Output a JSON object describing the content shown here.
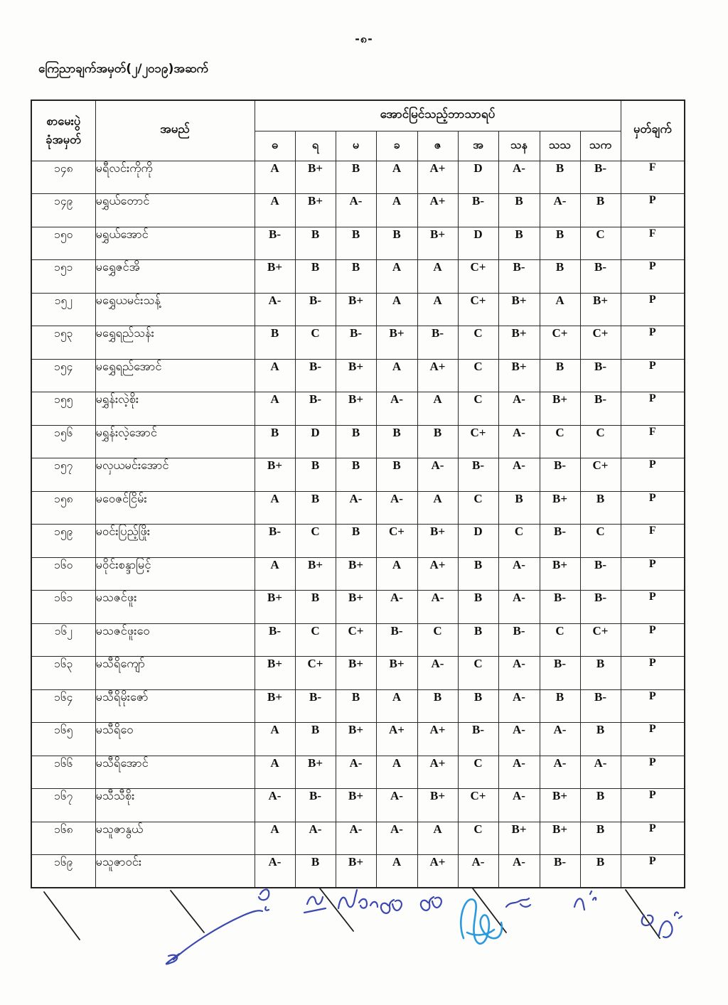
{
  "page": {
    "number_label": "-၈-",
    "header_line": "ကြေညာချက်အမှတ်(၂/၂၀၁၉)အဆက်"
  },
  "table": {
    "col_roll_header_line1": "စာမေးပွဲ",
    "col_roll_header_line2": "ခုံအမှတ်",
    "col_name_header": "အမည်",
    "subjects_group_header": "အောင်မြင်သည့်ဘာသာရပ်",
    "subject_headers": [
      "ဓ",
      "ရ",
      "မ",
      "ခ",
      "ဇ",
      "အ",
      "သန",
      "သသ",
      "သက"
    ],
    "col_remark_header": "မှတ်ချက်",
    "rows": [
      {
        "roll": "၁၄၈",
        "name": "မရီလင်းကိုကို",
        "grades": [
          "A",
          "B+",
          "B",
          "A",
          "A+",
          "D",
          "A-",
          "B",
          "B-"
        ],
        "remark": "F"
      },
      {
        "roll": "၁၄၉",
        "name": "မရွှယ်တောင်",
        "grades": [
          "A",
          "B+",
          "A-",
          "A",
          "A+",
          "B-",
          "B",
          "A-",
          "B"
        ],
        "remark": "P"
      },
      {
        "roll": "၁၅၀",
        "name": "မရွှယ်အောင်",
        "grades": [
          "B-",
          "B",
          "B",
          "B",
          "B+",
          "D",
          "B",
          "B",
          "C"
        ],
        "remark": "F"
      },
      {
        "roll": "၁၅၁",
        "name": "မရွှေဇင်အိ",
        "grades": [
          "B+",
          "B",
          "B",
          "A",
          "A",
          "C+",
          "B-",
          "B",
          "B-"
        ],
        "remark": "P"
      },
      {
        "roll": "၁၅၂",
        "name": "မရွှေယမင်းသန့်",
        "grades": [
          "A-",
          "B-",
          "B+",
          "A",
          "A",
          "C+",
          "B+",
          "A",
          "B+"
        ],
        "remark": "P"
      },
      {
        "roll": "၁၅၃",
        "name": "မရွှေရည်သန်း",
        "grades": [
          "B",
          "C",
          "B-",
          "B+",
          "B-",
          "C",
          "B+",
          "C+",
          "C+"
        ],
        "remark": "P"
      },
      {
        "roll": "၁၅၄",
        "name": "မရွှေရည်အောင်",
        "grades": [
          "A",
          "B-",
          "B+",
          "A",
          "A+",
          "C",
          "B+",
          "B",
          "B-"
        ],
        "remark": "P"
      },
      {
        "roll": "၁၅၅",
        "name": "မရွှန်းလဲ့စိုး",
        "grades": [
          "A",
          "B-",
          "B+",
          "A-",
          "A",
          "C",
          "A-",
          "B+",
          "B-"
        ],
        "remark": "P"
      },
      {
        "roll": "၁၅၆",
        "name": "မရွှန်းလဲ့အောင်",
        "grades": [
          "B",
          "D",
          "B",
          "B",
          "B",
          "C+",
          "A-",
          "C",
          "C"
        ],
        "remark": "F"
      },
      {
        "roll": "၁၅၇",
        "name": "မလှယမင်းအောင်",
        "grades": [
          "B+",
          "B",
          "B",
          "B",
          "A-",
          "B-",
          "A-",
          "B-",
          "C+"
        ],
        "remark": "P"
      },
      {
        "roll": "၁၅၈",
        "name": "မဝေဇင်ငြိမ်း",
        "grades": [
          "A",
          "B",
          "A-",
          "A-",
          "A",
          "C",
          "B",
          "B+",
          "B"
        ],
        "remark": "P"
      },
      {
        "roll": "၁၅၉",
        "name": "မဝင်းပြည့်ဖြိုး",
        "grades": [
          "B-",
          "C",
          "B",
          "C+",
          "B+",
          "D",
          "C",
          "B-",
          "C"
        ],
        "remark": "F"
      },
      {
        "roll": "၁၆၀",
        "name": "မဝိုင်းစန္ဒာမြင့်",
        "grades": [
          "A",
          "B+",
          "B+",
          "A",
          "A+",
          "B",
          "A-",
          "B+",
          "B-"
        ],
        "remark": "P"
      },
      {
        "roll": "၁၆၁",
        "name": "မသဇင်ဖူး",
        "grades": [
          "B+",
          "B",
          "B+",
          "A-",
          "A-",
          "B",
          "A-",
          "B-",
          "B-"
        ],
        "remark": "P"
      },
      {
        "roll": "၁၆၂",
        "name": "မသဇင်ဖူးဝေ",
        "grades": [
          "B-",
          "C",
          "C+",
          "B-",
          "C",
          "B",
          "B-",
          "C",
          "C+"
        ],
        "remark": "P"
      },
      {
        "roll": "၁၆၃",
        "name": "မသီရိကျော်",
        "grades": [
          "B+",
          "C+",
          "B+",
          "B+",
          "A-",
          "C",
          "A-",
          "B-",
          "B"
        ],
        "remark": "P"
      },
      {
        "roll": "၁၆၄",
        "name": "မသီရိမိုးဇော်",
        "grades": [
          "B+",
          "B-",
          "B",
          "A",
          "B",
          "B",
          "A-",
          "B",
          "B-"
        ],
        "remark": "P"
      },
      {
        "roll": "၁၆၅",
        "name": "မသီရိဝေ",
        "grades": [
          "A",
          "B",
          "B+",
          "A+",
          "A+",
          "B-",
          "A-",
          "A-",
          "B"
        ],
        "remark": "P"
      },
      {
        "roll": "၁၆၆",
        "name": "မသီရိအောင်",
        "grades": [
          "A",
          "B+",
          "A-",
          "A",
          "A+",
          "C",
          "A-",
          "A-",
          "A-"
        ],
        "remark": "P"
      },
      {
        "roll": "၁၆၇",
        "name": "မသီသီစိုး",
        "grades": [
          "A-",
          "B-",
          "B+",
          "A-",
          "B+",
          "C+",
          "A-",
          "B+",
          "B"
        ],
        "remark": "P"
      },
      {
        "roll": "၁၆၈",
        "name": "မသူဇာနွယ်",
        "grades": [
          "A",
          "A-",
          "A-",
          "A-",
          "A",
          "C",
          "B+",
          "B+",
          "B"
        ],
        "remark": "P"
      },
      {
        "roll": "၁၆၉",
        "name": "မသူဇာဝင်း",
        "grades": [
          "A-",
          "B",
          "B+",
          "A",
          "A+",
          "A-",
          "A-",
          "B-",
          "B"
        ],
        "remark": "P"
      }
    ]
  },
  "ink": {
    "black": "#1d1d1d",
    "blue": "#3a48b0",
    "cyan": "#2a9ade"
  }
}
